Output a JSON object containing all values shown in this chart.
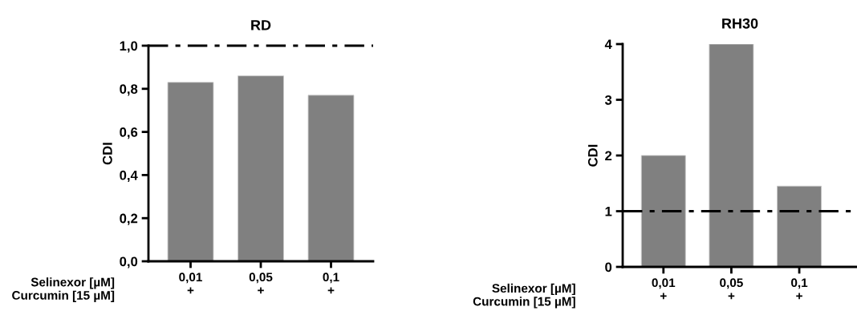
{
  "chart_data": [
    {
      "type": "bar",
      "title": "RD",
      "ylabel": "CDI",
      "xlabel": "Selinexor [µM]\nCurcumin [15 µM]",
      "categories": [
        "0,01\n+",
        "0,05\n+",
        "0,1\n+"
      ],
      "values": [
        0.83,
        0.86,
        0.77
      ],
      "color": "#808080",
      "ylim": [
        0,
        1.0
      ],
      "yticks": [
        {
          "value": 0,
          "label": "0,0"
        },
        {
          "value": 0.2,
          "label": "0,2"
        },
        {
          "value": 0.4,
          "label": "0,4"
        },
        {
          "value": 0.6,
          "label": "0,6"
        },
        {
          "value": 0.8,
          "label": "0,8"
        },
        {
          "value": 1.0,
          "label": "1,0"
        }
      ],
      "ref_lines": [
        {
          "axis": "y",
          "value": 1.0,
          "color": "#000000",
          "line_style": "dashdot"
        }
      ],
      "grid": false,
      "legend": false
    },
    {
      "type": "bar",
      "title": "RH30",
      "ylabel": "CDI",
      "xlabel": "Selinexor [µM]\nCurcumin [15 µM]",
      "categories": [
        "0,01\n+",
        "0,05\n+",
        "0,1\n+"
      ],
      "values": [
        2.0,
        4.0,
        1.45
      ],
      "color": "#808080",
      "ylim": [
        0,
        4
      ],
      "yticks": [
        0,
        1,
        2,
        3,
        4
      ],
      "ref_lines": [
        {
          "axis": "y",
          "value": 1,
          "color": "#000000",
          "line_style": "dashdot"
        }
      ],
      "grid": false,
      "legend": false
    }
  ]
}
